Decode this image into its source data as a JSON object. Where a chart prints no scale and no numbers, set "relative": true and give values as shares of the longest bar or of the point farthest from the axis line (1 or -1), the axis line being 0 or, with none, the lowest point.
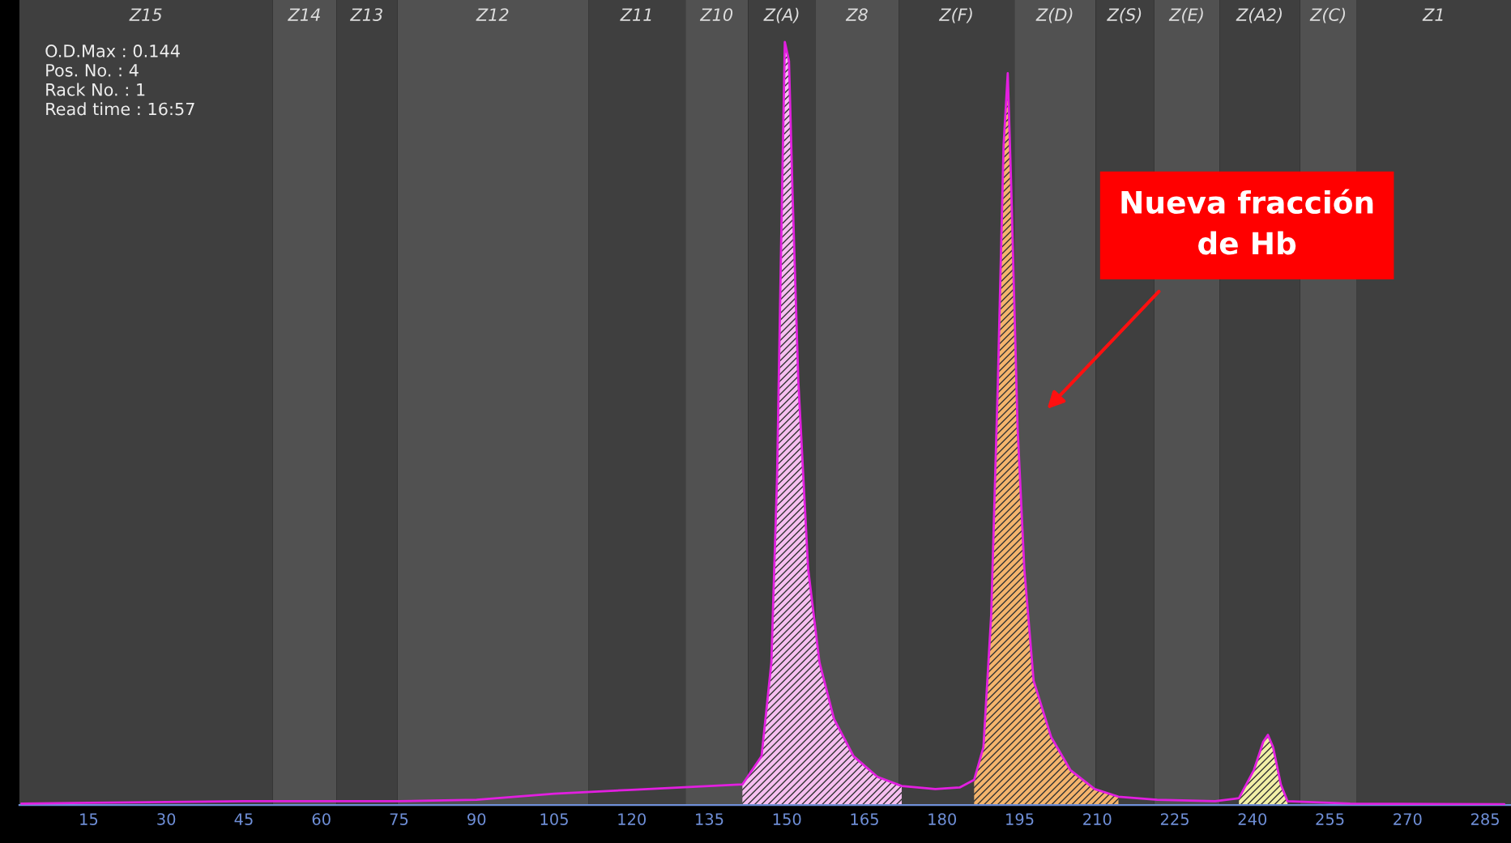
{
  "chart_data": {
    "type": "line",
    "relative": true,
    "grid": false,
    "legend": false,
    "xlim": [
      1.6,
      290
    ],
    "xticks": [
      15,
      30,
      45,
      60,
      75,
      90,
      105,
      120,
      135,
      150,
      165,
      180,
      195,
      210,
      225,
      240,
      255,
      270,
      285
    ],
    "series": [
      {
        "type": "area",
        "color": "#f6bff0",
        "x": [
          141.4,
          145.1,
          147,
          148.1,
          148.9,
          149.6,
          150.4,
          151.1,
          152.2,
          154.1,
          156.3,
          159.1,
          162.9,
          167.5,
          172.2
        ],
        "values": [
          0.027,
          0.064,
          0.187,
          0.43,
          0.74,
          1.0,
          0.975,
          0.8,
          0.557,
          0.31,
          0.187,
          0.113,
          0.064,
          0.037,
          0.025
        ]
      },
      {
        "type": "area",
        "color": "#f4b46c",
        "x": [
          186.2,
          188.0,
          189.5,
          190.8,
          191.9,
          192.7,
          193.4,
          194.6,
          195.9,
          197.7,
          201.1,
          204.8,
          209.5,
          214.1
        ],
        "values": [
          0.033,
          0.076,
          0.249,
          0.557,
          0.865,
          0.959,
          0.803,
          0.495,
          0.31,
          0.163,
          0.089,
          0.046,
          0.021,
          0.011
        ]
      },
      {
        "type": "area",
        "color": "#f2efa6",
        "x": [
          237.4,
          240.3,
          242.1,
          243.0,
          244.0,
          245.5,
          246.8
        ],
        "values": [
          0.009,
          0.046,
          0.083,
          0.092,
          0.076,
          0.027,
          0.005
        ]
      },
      {
        "color": "#e21fe0",
        "x": [
          2,
          15,
          30,
          45,
          60,
          75,
          90,
          105,
          120,
          135,
          141.4,
          145.1,
          147,
          148.1,
          148.9,
          149.6,
          150.4,
          151.1,
          152.2,
          154.1,
          156.3,
          159.1,
          162.9,
          167.5,
          172.2,
          178.7,
          183.4,
          186.2,
          188.0,
          189.5,
          190.8,
          191.9,
          192.7,
          193.4,
          194.6,
          195.9,
          197.7,
          201.1,
          204.8,
          209.5,
          214.1,
          221.6,
          232.8,
          237.4,
          240.3,
          242.1,
          243.0,
          244.0,
          245.5,
          246.8,
          258.9,
          288.7
        ],
        "values": [
          0.002,
          0.003,
          0.004,
          0.005,
          0.005,
          0.005,
          0.007,
          0.015,
          0.02,
          0.025,
          0.027,
          0.064,
          0.187,
          0.43,
          0.74,
          1.0,
          0.975,
          0.8,
          0.557,
          0.31,
          0.187,
          0.113,
          0.064,
          0.037,
          0.025,
          0.021,
          0.023,
          0.033,
          0.076,
          0.249,
          0.557,
          0.865,
          0.959,
          0.803,
          0.495,
          0.31,
          0.163,
          0.089,
          0.046,
          0.021,
          0.011,
          0.007,
          0.005,
          0.009,
          0.046,
          0.083,
          0.092,
          0.076,
          0.027,
          0.005,
          0.002,
          0.001
        ]
      }
    ],
    "bands": [
      {
        "axis": "x",
        "from": 1.6,
        "to": 50.6,
        "label": "Z15",
        "color": "#3f3f3f"
      },
      {
        "axis": "x",
        "from": 50.6,
        "to": 62.9,
        "label": "Z14",
        "color": "#515151"
      },
      {
        "axis": "x",
        "from": 62.9,
        "to": 74.7,
        "label": "Z13",
        "color": "#3f3f3f"
      },
      {
        "axis": "x",
        "from": 74.7,
        "to": 111.6,
        "label": "Z12",
        "color": "#515151"
      },
      {
        "axis": "x",
        "from": 111.6,
        "to": 130.4,
        "label": "Z11",
        "color": "#3f3f3f"
      },
      {
        "axis": "x",
        "from": 130.4,
        "to": 142.5,
        "label": "Z10",
        "color": "#515151"
      },
      {
        "axis": "x",
        "from": 142.5,
        "to": 155.6,
        "label": "Z(A)",
        "color": "#3f3f3f"
      },
      {
        "axis": "x",
        "from": 155.6,
        "to": 171.6,
        "label": "Z8",
        "color": "#515151"
      },
      {
        "axis": "x",
        "from": 171.6,
        "to": 194.0,
        "label": "Z(F)",
        "color": "#3f3f3f"
      },
      {
        "axis": "x",
        "from": 194.0,
        "to": 209.7,
        "label": "Z(D)",
        "color": "#515151"
      },
      {
        "axis": "x",
        "from": 209.7,
        "to": 221.0,
        "label": "Z(S)",
        "color": "#3f3f3f"
      },
      {
        "axis": "x",
        "from": 221.0,
        "to": 233.7,
        "label": "Z(E)",
        "color": "#515151"
      },
      {
        "axis": "x",
        "from": 233.7,
        "to": 249.2,
        "label": "Z(A2)",
        "color": "#3f3f3f"
      },
      {
        "axis": "x",
        "from": 249.2,
        "to": 260.2,
        "label": "Z(C)",
        "color": "#515151"
      },
      {
        "axis": "x",
        "from": 260.2,
        "to": 290,
        "label": "Z1",
        "color": "#3f3f3f"
      }
    ],
    "annotations": [
      "O.D.Max : 0.144",
      "Pos. No. : 4",
      "Rack No. : 1",
      "Read time : 16:57",
      "Nueva fracción\nde Hb"
    ]
  }
}
